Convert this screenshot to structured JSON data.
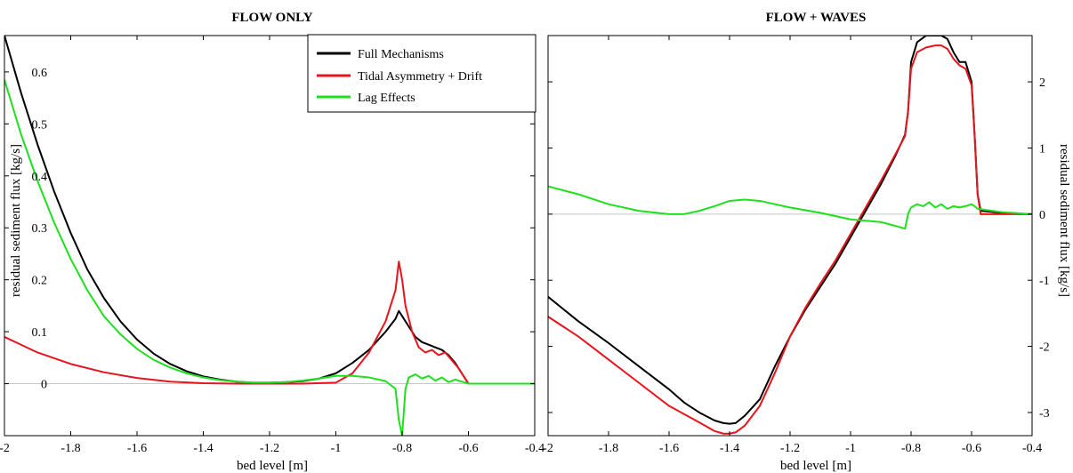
{
  "chart_data": [
    {
      "type": "line",
      "title": "FLOW ONLY",
      "xlabel": "bed level [m]",
      "ylabel": "residual sediment flux [kg/s]",
      "xlim": [
        -2.0,
        -0.4
      ],
      "ylim": [
        -0.1,
        0.67
      ],
      "xticks": [
        "-2",
        "-1.8",
        "-1.6",
        "-1.4",
        "-1.2",
        "-1",
        "-0.8",
        "-0.6",
        "-0.4"
      ],
      "yticks": [
        "0",
        "0.1",
        "0.2",
        "0.3",
        "0.4",
        "0.5",
        "0.6"
      ],
      "grid": false,
      "zero_line": true,
      "legend_position": "top-right",
      "series": [
        {
          "name": "Full Mechanisms",
          "color": "#000000",
          "x": [
            -2.0,
            -1.95,
            -1.9,
            -1.85,
            -1.8,
            -1.75,
            -1.7,
            -1.65,
            -1.6,
            -1.55,
            -1.5,
            -1.45,
            -1.4,
            -1.35,
            -1.3,
            -1.25,
            -1.2,
            -1.15,
            -1.1,
            -1.05,
            -1.0,
            -0.95,
            -0.9,
            -0.85,
            -0.82,
            -0.81,
            -0.8,
            -0.78,
            -0.76,
            -0.74,
            -0.72,
            -0.7,
            -0.68,
            -0.66,
            -0.64,
            -0.62,
            -0.6,
            -0.55,
            -0.5,
            -0.45,
            -0.4
          ],
          "y": [
            0.67,
            0.56,
            0.46,
            0.37,
            0.29,
            0.22,
            0.165,
            0.12,
            0.085,
            0.058,
            0.038,
            0.024,
            0.014,
            0.008,
            0.004,
            0.002,
            0.002,
            0.003,
            0.005,
            0.01,
            0.02,
            0.04,
            0.065,
            0.1,
            0.125,
            0.14,
            0.13,
            0.11,
            0.09,
            0.08,
            0.075,
            0.07,
            0.065,
            0.055,
            0.04,
            0.02,
            0.0,
            0.0,
            0.0,
            0.0,
            0.0
          ]
        },
        {
          "name": "Tidal Asymmetry + Drift",
          "color": "#e8141c",
          "x": [
            -2.0,
            -1.9,
            -1.8,
            -1.7,
            -1.6,
            -1.5,
            -1.4,
            -1.3,
            -1.2,
            -1.1,
            -1.0,
            -0.95,
            -0.9,
            -0.85,
            -0.82,
            -0.81,
            -0.8,
            -0.79,
            -0.77,
            -0.75,
            -0.73,
            -0.71,
            -0.69,
            -0.67,
            -0.65,
            -0.63,
            -0.61,
            -0.6,
            -0.55,
            -0.5,
            -0.45,
            -0.4
          ],
          "y": [
            0.09,
            0.06,
            0.038,
            0.022,
            0.011,
            0.004,
            0.001,
            0.0,
            0.0,
            0.0,
            0.002,
            0.02,
            0.06,
            0.12,
            0.18,
            0.235,
            0.2,
            0.15,
            0.1,
            0.07,
            0.06,
            0.065,
            0.055,
            0.06,
            0.045,
            0.03,
            0.01,
            0.0,
            0.0,
            0.0,
            0.0,
            0.0
          ]
        },
        {
          "name": "Lag Effects",
          "color": "#1ee01e",
          "x": [
            -2.0,
            -1.95,
            -1.9,
            -1.85,
            -1.8,
            -1.75,
            -1.7,
            -1.65,
            -1.6,
            -1.55,
            -1.5,
            -1.45,
            -1.4,
            -1.35,
            -1.3,
            -1.25,
            -1.2,
            -1.15,
            -1.1,
            -1.05,
            -1.0,
            -0.95,
            -0.9,
            -0.85,
            -0.82,
            -0.81,
            -0.8,
            -0.79,
            -0.78,
            -0.76,
            -0.74,
            -0.72,
            -0.7,
            -0.68,
            -0.66,
            -0.64,
            -0.62,
            -0.6,
            -0.55,
            -0.5,
            -0.45,
            -0.4
          ],
          "y": [
            0.585,
            0.48,
            0.39,
            0.31,
            0.24,
            0.18,
            0.13,
            0.095,
            0.067,
            0.046,
            0.031,
            0.02,
            0.012,
            0.007,
            0.004,
            0.002,
            0.002,
            0.003,
            0.006,
            0.01,
            0.015,
            0.015,
            0.012,
            0.005,
            -0.01,
            -0.07,
            -0.1,
            -0.01,
            0.012,
            0.018,
            0.01,
            0.015,
            0.006,
            0.012,
            0.003,
            0.008,
            0.004,
            0.0,
            0.0,
            0.0,
            0.0,
            0.0
          ]
        }
      ]
    },
    {
      "type": "line",
      "title": "FLOW + WAVES",
      "xlabel": "bed level [m]",
      "ylabel": "residual sediment flux [kg/s]",
      "xlim": [
        -2.0,
        -0.4
      ],
      "ylim": [
        -3.35,
        2.7
      ],
      "xticks": [
        "-2",
        "-1.8",
        "-1.6",
        "-1.4",
        "-1.2",
        "-1",
        "-0.8",
        "-0.6",
        "-0.4"
      ],
      "yticks": [
        "-3",
        "-2",
        "-1",
        "0",
        "1",
        "2"
      ],
      "grid": false,
      "zero_line": true,
      "series": [
        {
          "name": "Full Mechanisms",
          "color": "#000000",
          "x": [
            -2.0,
            -1.9,
            -1.8,
            -1.7,
            -1.6,
            -1.55,
            -1.5,
            -1.45,
            -1.42,
            -1.4,
            -1.38,
            -1.35,
            -1.3,
            -1.25,
            -1.2,
            -1.15,
            -1.1,
            -1.05,
            -1.0,
            -0.95,
            -0.9,
            -0.85,
            -0.82,
            -0.81,
            -0.8,
            -0.78,
            -0.75,
            -0.72,
            -0.7,
            -0.68,
            -0.66,
            -0.64,
            -0.62,
            -0.6,
            -0.59,
            -0.58,
            -0.57,
            -0.5,
            -0.4
          ],
          "y": [
            -1.25,
            -1.62,
            -1.95,
            -2.3,
            -2.65,
            -2.85,
            -3.0,
            -3.12,
            -3.16,
            -3.17,
            -3.16,
            -3.05,
            -2.8,
            -2.3,
            -1.85,
            -1.45,
            -1.1,
            -0.75,
            -0.35,
            0.05,
            0.45,
            0.9,
            1.2,
            1.55,
            2.3,
            2.6,
            2.7,
            2.7,
            2.7,
            2.65,
            2.45,
            2.3,
            2.3,
            2.0,
            1.2,
            0.3,
            0.05,
            0.02,
            0.0
          ]
        },
        {
          "name": "Tidal Asymmetry + Drift",
          "color": "#e8141c",
          "x": [
            -2.0,
            -1.9,
            -1.8,
            -1.7,
            -1.6,
            -1.5,
            -1.45,
            -1.42,
            -1.4,
            -1.38,
            -1.35,
            -1.3,
            -1.25,
            -1.2,
            -1.15,
            -1.1,
            -1.05,
            -1.0,
            -0.95,
            -0.9,
            -0.85,
            -0.82,
            -0.81,
            -0.8,
            -0.78,
            -0.75,
            -0.72,
            -0.7,
            -0.68,
            -0.66,
            -0.64,
            -0.62,
            -0.6,
            -0.59,
            -0.58,
            -0.57,
            -0.5,
            -0.4
          ],
          "y": [
            -1.55,
            -1.85,
            -2.2,
            -2.55,
            -2.9,
            -3.15,
            -3.28,
            -3.32,
            -3.32,
            -3.3,
            -3.2,
            -2.9,
            -2.4,
            -1.85,
            -1.42,
            -1.05,
            -0.7,
            -0.3,
            0.1,
            0.5,
            0.92,
            1.18,
            1.55,
            2.2,
            2.45,
            2.52,
            2.55,
            2.55,
            2.5,
            2.35,
            2.25,
            2.2,
            1.95,
            1.2,
            0.3,
            0.0,
            0.0,
            0.0
          ]
        },
        {
          "name": "Lag Effects",
          "color": "#1ee01e",
          "x": [
            -2.0,
            -1.9,
            -1.8,
            -1.7,
            -1.6,
            -1.55,
            -1.5,
            -1.45,
            -1.4,
            -1.35,
            -1.3,
            -1.25,
            -1.2,
            -1.1,
            -1.0,
            -0.9,
            -0.85,
            -0.82,
            -0.81,
            -0.8,
            -0.78,
            -0.76,
            -0.74,
            -0.72,
            -0.7,
            -0.68,
            -0.66,
            -0.64,
            -0.62,
            -0.6,
            -0.59,
            -0.58,
            -0.5,
            -0.4
          ],
          "y": [
            0.42,
            0.3,
            0.15,
            0.05,
            0.0,
            0.0,
            0.05,
            0.12,
            0.2,
            0.22,
            0.2,
            0.15,
            0.1,
            0.02,
            -0.08,
            -0.12,
            -0.18,
            -0.22,
            0.0,
            0.1,
            0.15,
            0.12,
            0.18,
            0.1,
            0.15,
            0.08,
            0.12,
            0.1,
            0.12,
            0.15,
            0.12,
            0.08,
            0.03,
            0.0
          ]
        }
      ]
    }
  ]
}
